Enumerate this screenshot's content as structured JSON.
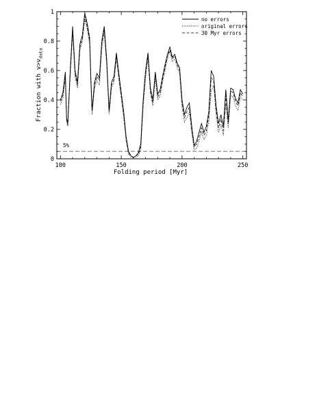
{
  "chart_data": {
    "type": "line",
    "title": "",
    "xlabel": "Folding period [Myr]",
    "ylabel": "Fraction with v>v",
    "ylabel_subscript": "data",
    "xlim": [
      97,
      253
    ],
    "ylim": [
      0,
      1
    ],
    "xticks": [
      100,
      150,
      200,
      250
    ],
    "yticks": [
      0,
      0.2,
      0.4,
      0.6,
      0.8,
      1
    ],
    "ytick_labels": [
      "0",
      "0.2",
      "0.4",
      "0.6",
      "0.8",
      "1"
    ],
    "grid": false,
    "legend_position": "top-right",
    "annotation": {
      "text": "5%",
      "x": 99,
      "y": 0.075
    },
    "threshold_line": {
      "y": 0.05,
      "color": "#a0a0a0",
      "style": "dashed"
    },
    "x": [
      100,
      102,
      104,
      105,
      106,
      108,
      110,
      112,
      114,
      116,
      118,
      120,
      122,
      124,
      125,
      126,
      128,
      130,
      132,
      134,
      136,
      138,
      140,
      142,
      144,
      146,
      148,
      150,
      152,
      154,
      156,
      158,
      160,
      162,
      164,
      166,
      168,
      170,
      172,
      174,
      176,
      178,
      180,
      182,
      184,
      186,
      188,
      190,
      192,
      194,
      196,
      198,
      200,
      202,
      204,
      206,
      208,
      210,
      212,
      214,
      216,
      218,
      220,
      222,
      224,
      226,
      228,
      230,
      232,
      234,
      236,
      238,
      240,
      242,
      244,
      246,
      248,
      250
    ],
    "series": [
      {
        "name": "no errors",
        "style": "solid",
        "values": [
          0.4,
          0.45,
          0.59,
          0.28,
          0.24,
          0.6,
          0.9,
          0.6,
          0.52,
          0.78,
          0.84,
          0.99,
          0.92,
          0.82,
          0.55,
          0.33,
          0.52,
          0.58,
          0.55,
          0.8,
          0.9,
          0.68,
          0.33,
          0.52,
          0.56,
          0.72,
          0.58,
          0.45,
          0.32,
          0.15,
          0.05,
          0.02,
          0.01,
          0.02,
          0.04,
          0.1,
          0.4,
          0.6,
          0.72,
          0.48,
          0.4,
          0.59,
          0.44,
          0.47,
          0.56,
          0.64,
          0.71,
          0.76,
          0.69,
          0.71,
          0.65,
          0.62,
          0.4,
          0.3,
          0.35,
          0.38,
          0.22,
          0.09,
          0.12,
          0.18,
          0.24,
          0.18,
          0.22,
          0.32,
          0.6,
          0.56,
          0.36,
          0.24,
          0.3,
          0.22,
          0.47,
          0.26,
          0.48,
          0.47,
          0.41,
          0.38,
          0.47,
          0.44
        ]
      },
      {
        "name": "original errors",
        "style": "dotted",
        "values": [
          0.37,
          0.41,
          0.55,
          0.26,
          0.22,
          0.56,
          0.85,
          0.56,
          0.48,
          0.74,
          0.8,
          0.95,
          0.88,
          0.78,
          0.51,
          0.3,
          0.48,
          0.53,
          0.5,
          0.75,
          0.86,
          0.64,
          0.3,
          0.48,
          0.52,
          0.68,
          0.54,
          0.41,
          0.28,
          0.12,
          0.03,
          0.01,
          0.01,
          0.01,
          0.02,
          0.06,
          0.35,
          0.55,
          0.68,
          0.44,
          0.36,
          0.55,
          0.4,
          0.43,
          0.52,
          0.6,
          0.68,
          0.73,
          0.66,
          0.68,
          0.62,
          0.58,
          0.35,
          0.25,
          0.28,
          0.32,
          0.17,
          0.06,
          0.07,
          0.12,
          0.18,
          0.13,
          0.16,
          0.25,
          0.46,
          0.5,
          0.3,
          0.18,
          0.23,
          0.16,
          0.37,
          0.21,
          0.43,
          0.42,
          0.36,
          0.33,
          0.42,
          0.4
        ]
      },
      {
        "name": "30 Myr errors",
        "style": "dashed",
        "values": [
          0.39,
          0.43,
          0.57,
          0.27,
          0.23,
          0.58,
          0.88,
          0.58,
          0.5,
          0.76,
          0.82,
          0.97,
          0.9,
          0.8,
          0.53,
          0.32,
          0.5,
          0.56,
          0.53,
          0.78,
          0.88,
          0.66,
          0.32,
          0.5,
          0.54,
          0.7,
          0.56,
          0.43,
          0.3,
          0.14,
          0.04,
          0.02,
          0.01,
          0.02,
          0.03,
          0.08,
          0.38,
          0.58,
          0.7,
          0.46,
          0.38,
          0.57,
          0.42,
          0.45,
          0.54,
          0.62,
          0.7,
          0.74,
          0.68,
          0.7,
          0.64,
          0.6,
          0.38,
          0.28,
          0.32,
          0.35,
          0.2,
          0.08,
          0.1,
          0.15,
          0.21,
          0.16,
          0.19,
          0.29,
          0.55,
          0.53,
          0.33,
          0.21,
          0.27,
          0.19,
          0.43,
          0.24,
          0.46,
          0.45,
          0.39,
          0.36,
          0.45,
          0.42
        ]
      }
    ]
  }
}
